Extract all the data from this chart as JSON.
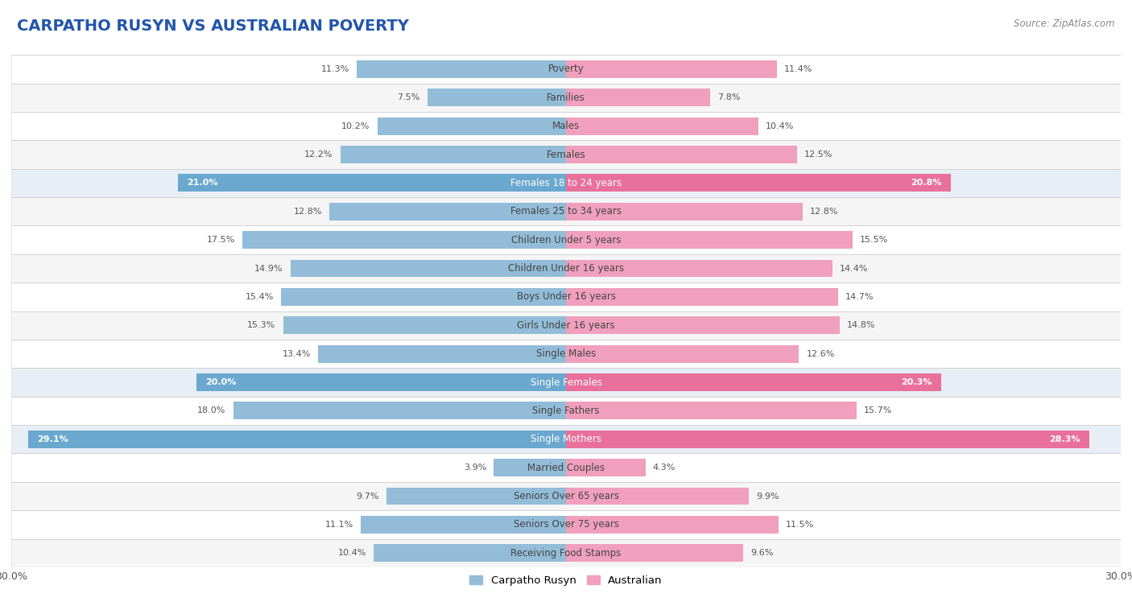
{
  "title": "CARPATHO RUSYN VS AUSTRALIAN POVERTY",
  "source": "Source: ZipAtlas.com",
  "categories": [
    "Poverty",
    "Families",
    "Males",
    "Females",
    "Females 18 to 24 years",
    "Females 25 to 34 years",
    "Children Under 5 years",
    "Children Under 16 years",
    "Boys Under 16 years",
    "Girls Under 16 years",
    "Single Males",
    "Single Females",
    "Single Fathers",
    "Single Mothers",
    "Married Couples",
    "Seniors Over 65 years",
    "Seniors Over 75 years",
    "Receiving Food Stamps"
  ],
  "carpatho_rusyn": [
    11.3,
    7.5,
    10.2,
    12.2,
    21.0,
    12.8,
    17.5,
    14.9,
    15.4,
    15.3,
    13.4,
    20.0,
    18.0,
    29.1,
    3.9,
    9.7,
    11.1,
    10.4
  ],
  "australian": [
    11.4,
    7.8,
    10.4,
    12.5,
    20.8,
    12.8,
    15.5,
    14.4,
    14.7,
    14.8,
    12.6,
    20.3,
    15.7,
    28.3,
    4.3,
    9.9,
    11.5,
    9.6
  ],
  "color_rusyn": "#92bcd8",
  "color_australian": "#f0a0bc",
  "color_rusyn_highlight": "#6aa8cf",
  "color_australian_highlight": "#e8709a",
  "background_color": "#ffffff",
  "row_bg_odd": "#f5f5f5",
  "row_bg_even": "#ffffff",
  "highlight_indices": [
    4,
    11,
    13
  ],
  "xlim": 30.0,
  "bar_height": 0.62,
  "legend_labels": [
    "Carpatho Rusyn",
    "Australian"
  ],
  "title_fontsize": 14,
  "label_fontsize": 8.5,
  "value_fontsize": 8.0
}
